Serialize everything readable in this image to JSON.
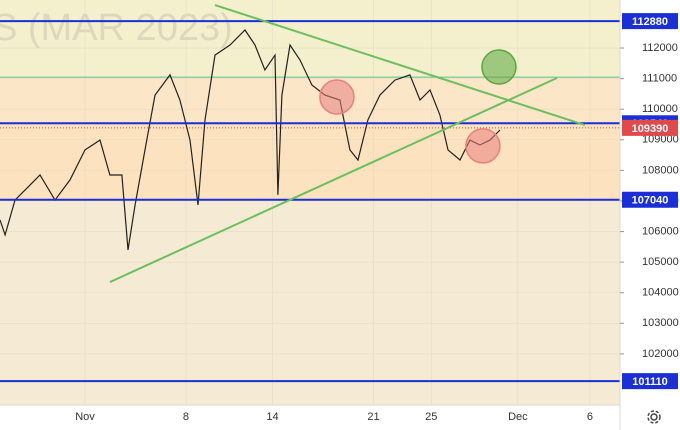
{
  "chart_data": {
    "type": "line",
    "watermark": "S (MAR 2023)",
    "series": [
      {
        "color": "#222222",
        "x": [
          -4.89,
          -4.54,
          -3.85,
          -2.81,
          -2.12,
          -1.08,
          -0.04,
          1,
          2.04,
          2.73,
          3.56,
          3.98,
          4.47,
          5.16,
          5.85,
          6.89,
          7.58,
          8.28,
          8.83,
          9.32,
          10.01,
          11.05,
          12.09,
          12.78,
          13.47,
          14.17,
          14.37,
          14.65,
          15.21,
          15.9,
          16.73,
          17.63,
          18.67,
          19.36,
          19.92,
          20.61,
          21.44,
          22.48,
          23.52,
          24.22,
          24.91,
          25.6,
          26.16,
          26.99,
          27.68,
          28.37,
          29.07,
          29.76
        ],
        "values": [
          106380,
          105890,
          107030,
          107520,
          107850,
          107030,
          107690,
          108670,
          108990,
          107850,
          107850,
          105400,
          106870,
          108670,
          110460,
          111120,
          110300,
          108990,
          106870,
          109650,
          111770,
          112100,
          112590,
          112100,
          111280,
          111770,
          107200,
          110460,
          112100,
          111610,
          110790,
          110460,
          110300,
          108670,
          108340,
          109650,
          110460,
          110950,
          111120,
          110300,
          110630,
          109810,
          108670,
          108340,
          108990,
          108830,
          108990,
          109320
        ]
      }
    ],
    "xlim": [
      -4.89,
      38.08
    ],
    "xticks": [
      {
        "value": 1,
        "label": "Nov"
      },
      8,
      14,
      21,
      25,
      {
        "value": 31,
        "label": "Dec"
      },
      {
        "value": 36,
        "label": "6"
      }
    ],
    "ylim": [
      100330,
      113570
    ],
    "yticks": [
      102000,
      103000,
      104000,
      105000,
      106000,
      107000,
      108000,
      109000,
      110000,
      111000,
      112000
    ],
    "grid": true,
    "bands": [
      {
        "from": 111050,
        "to": 113570,
        "color": "#f4efcd"
      },
      {
        "from": 109540,
        "to": 111050,
        "color": "#fbe6c8"
      },
      {
        "from": 107040,
        "to": 109540,
        "color": "#fce2bf"
      },
      {
        "from": 100330,
        "to": 107040,
        "color": "#f5ebd5"
      }
    ],
    "levels": [
      {
        "value": 112880,
        "color": "#1a2fd6"
      },
      {
        "value": 109540,
        "color": "#1a2fd6"
      },
      {
        "value": 107040,
        "color": "#1a2fd6"
      },
      {
        "value": 101110,
        "color": "#1a2fd6"
      }
    ],
    "guide": {
      "value": 111050,
      "color": "#5cc08a"
    },
    "current": {
      "value": 109390,
      "color": "#e04a4a"
    },
    "trendlines": [
      {
        "x": [
          10.01,
          35.65
        ],
        "y": [
          113405,
          109480
        ],
        "color": "#6cbf5f"
      },
      {
        "x": [
          2.73,
          33.71
        ],
        "y": [
          104350,
          111020
        ],
        "color": "#6cbf5f"
      }
    ],
    "circles": [
      {
        "x": 18.46,
        "y": 110400,
        "color": "#e88080"
      },
      {
        "x": 28.58,
        "y": 108800,
        "color": "#e88080"
      },
      {
        "x": 29.69,
        "y": 111380,
        "color": "#5aa840"
      }
    ]
  }
}
